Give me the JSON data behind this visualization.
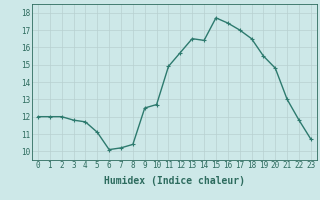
{
  "x": [
    0,
    1,
    2,
    3,
    4,
    5,
    6,
    7,
    8,
    9,
    10,
    11,
    12,
    13,
    14,
    15,
    16,
    17,
    18,
    19,
    20,
    21,
    22,
    23
  ],
  "y": [
    12.0,
    12.0,
    12.0,
    11.8,
    11.7,
    11.1,
    10.1,
    10.2,
    10.4,
    12.5,
    12.7,
    14.9,
    15.7,
    16.5,
    16.4,
    17.7,
    17.4,
    17.0,
    16.5,
    15.5,
    14.8,
    13.0,
    11.8,
    10.7
  ],
  "line_color": "#2d7a6e",
  "marker": "+",
  "marker_size": 3,
  "linewidth": 1.0,
  "xlabel": "Humidex (Indice chaleur)",
  "xlabel_fontsize": 7,
  "xlim": [
    -0.5,
    23.5
  ],
  "ylim": [
    9.5,
    18.5
  ],
  "yticks": [
    10,
    11,
    12,
    13,
    14,
    15,
    16,
    17,
    18
  ],
  "xticks": [
    0,
    1,
    2,
    3,
    4,
    5,
    6,
    7,
    8,
    9,
    10,
    11,
    12,
    13,
    14,
    15,
    16,
    17,
    18,
    19,
    20,
    21,
    22,
    23
  ],
  "bg_color": "#cde8e8",
  "grid_color": "#b8d0d0",
  "tick_color": "#2d6b5e"
}
